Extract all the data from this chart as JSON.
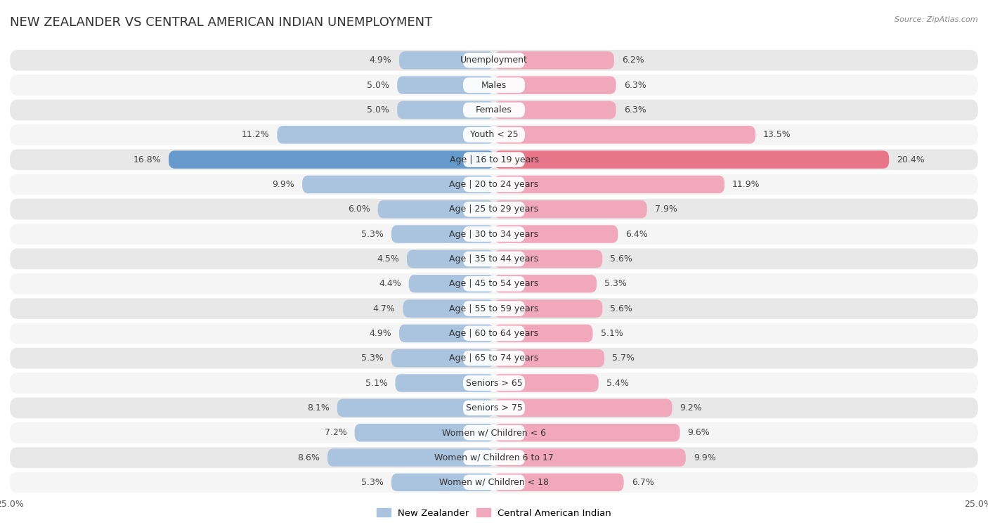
{
  "title": "NEW ZEALANDER VS CENTRAL AMERICAN INDIAN UNEMPLOYMENT",
  "source": "Source: ZipAtlas.com",
  "categories": [
    "Unemployment",
    "Males",
    "Females",
    "Youth < 25",
    "Age | 16 to 19 years",
    "Age | 20 to 24 years",
    "Age | 25 to 29 years",
    "Age | 30 to 34 years",
    "Age | 35 to 44 years",
    "Age | 45 to 54 years",
    "Age | 55 to 59 years",
    "Age | 60 to 64 years",
    "Age | 65 to 74 years",
    "Seniors > 65",
    "Seniors > 75",
    "Women w/ Children < 6",
    "Women w/ Children 6 to 17",
    "Women w/ Children < 18"
  ],
  "left_values": [
    4.9,
    5.0,
    5.0,
    11.2,
    16.8,
    9.9,
    6.0,
    5.3,
    4.5,
    4.4,
    4.7,
    4.9,
    5.3,
    5.1,
    8.1,
    7.2,
    8.6,
    5.3
  ],
  "right_values": [
    6.2,
    6.3,
    6.3,
    13.5,
    20.4,
    11.9,
    7.9,
    6.4,
    5.6,
    5.3,
    5.6,
    5.1,
    5.7,
    5.4,
    9.2,
    9.6,
    9.9,
    6.7
  ],
  "left_color": "#aac4e0",
  "right_color": "#f2a8bc",
  "highlight_left_color": "#6699cc",
  "highlight_right_color": "#e8758a",
  "highlight_row": 4,
  "xlim": 25.0,
  "background_color": "#ffffff",
  "row_bg_even": "#e8e8e8",
  "row_bg_odd": "#f5f5f5",
  "title_fontsize": 13,
  "label_fontsize": 9,
  "value_fontsize": 9,
  "legend_left": "New Zealander",
  "legend_right": "Central American Indian"
}
